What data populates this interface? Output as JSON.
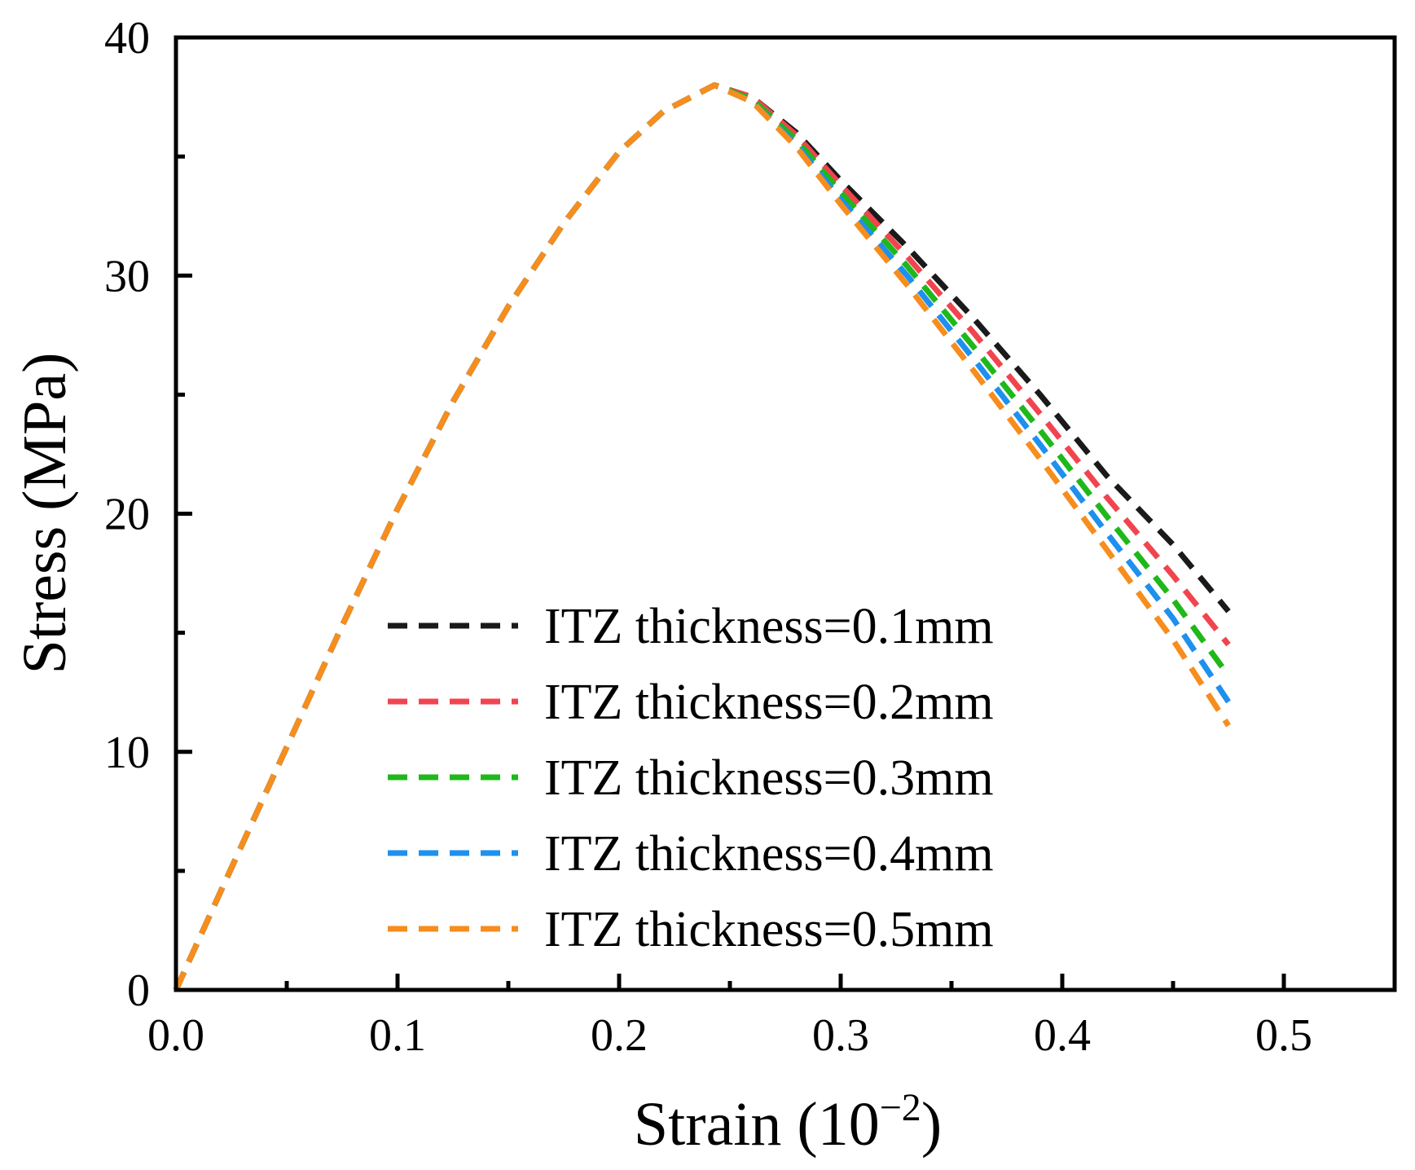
{
  "chart_data": {
    "type": "line",
    "title": "",
    "xlabel_main": "Strain (10",
    "xlabel_sup": "−2",
    "xlabel_close": ")",
    "ylabel": "Stress (MPa)",
    "xlim": [
      0,
      0.55
    ],
    "ylim": [
      0,
      40
    ],
    "x_ticks": [
      0.0,
      0.1,
      0.2,
      0.3,
      0.4,
      0.5
    ],
    "x_tick_labels": [
      "0.0",
      "0.1",
      "0.2",
      "0.3",
      "0.4",
      "0.5"
    ],
    "y_ticks": [
      0,
      10,
      20,
      30,
      40
    ],
    "y_tick_labels": [
      "0",
      "10",
      "20",
      "30",
      "40"
    ],
    "x_minor_ticks": [
      0.05,
      0.15,
      0.25,
      0.35,
      0.45
    ],
    "y_minor_ticks": [
      5,
      15,
      25,
      35
    ],
    "grid": false,
    "legend_position": "bottom-center",
    "series": [
      {
        "name": "ITZ thickness=0.1mm",
        "color": "#1a1a1a",
        "points": [
          [
            0,
            0
          ],
          [
            0.02,
            4.1
          ],
          [
            0.05,
            10.2
          ],
          [
            0.075,
            15.3
          ],
          [
            0.1,
            20.2
          ],
          [
            0.125,
            24.7
          ],
          [
            0.15,
            28.7
          ],
          [
            0.175,
            32.2
          ],
          [
            0.2,
            35.2
          ],
          [
            0.22,
            36.9
          ],
          [
            0.243,
            38.0
          ],
          [
            0.26,
            37.5
          ],
          [
            0.28,
            36.0
          ],
          [
            0.3,
            34.0
          ],
          [
            0.33,
            31.2
          ],
          [
            0.36,
            28.2
          ],
          [
            0.39,
            25.0
          ],
          [
            0.42,
            21.6
          ],
          [
            0.45,
            18.7
          ],
          [
            0.475,
            15.9
          ]
        ]
      },
      {
        "name": "ITZ thickness=0.2mm",
        "color": "#f0454f",
        "points": [
          [
            0,
            0
          ],
          [
            0.02,
            4.1
          ],
          [
            0.05,
            10.2
          ],
          [
            0.075,
            15.3
          ],
          [
            0.1,
            20.2
          ],
          [
            0.125,
            24.7
          ],
          [
            0.15,
            28.7
          ],
          [
            0.175,
            32.2
          ],
          [
            0.2,
            35.2
          ],
          [
            0.22,
            36.9
          ],
          [
            0.243,
            38.0
          ],
          [
            0.26,
            37.5
          ],
          [
            0.28,
            35.9
          ],
          [
            0.3,
            33.8
          ],
          [
            0.33,
            30.8
          ],
          [
            0.36,
            27.6
          ],
          [
            0.39,
            24.2
          ],
          [
            0.42,
            20.7
          ],
          [
            0.45,
            17.4
          ],
          [
            0.475,
            14.5
          ]
        ]
      },
      {
        "name": "ITZ thickness=0.3mm",
        "color": "#1fb81a",
        "points": [
          [
            0,
            0
          ],
          [
            0.02,
            4.1
          ],
          [
            0.05,
            10.2
          ],
          [
            0.075,
            15.3
          ],
          [
            0.1,
            20.2
          ],
          [
            0.125,
            24.7
          ],
          [
            0.15,
            28.7
          ],
          [
            0.175,
            32.2
          ],
          [
            0.2,
            35.2
          ],
          [
            0.22,
            36.9
          ],
          [
            0.243,
            38.0
          ],
          [
            0.26,
            37.4
          ],
          [
            0.28,
            35.7
          ],
          [
            0.3,
            33.5
          ],
          [
            0.33,
            30.4
          ],
          [
            0.36,
            27.0
          ],
          [
            0.39,
            23.5
          ],
          [
            0.42,
            19.9
          ],
          [
            0.45,
            16.4
          ],
          [
            0.475,
            13.2
          ]
        ]
      },
      {
        "name": "ITZ thickness=0.4mm",
        "color": "#1e90ee",
        "points": [
          [
            0,
            0
          ],
          [
            0.02,
            4.1
          ],
          [
            0.05,
            10.2
          ],
          [
            0.075,
            15.3
          ],
          [
            0.1,
            20.2
          ],
          [
            0.125,
            24.7
          ],
          [
            0.15,
            28.7
          ],
          [
            0.175,
            32.2
          ],
          [
            0.2,
            35.2
          ],
          [
            0.22,
            36.9
          ],
          [
            0.243,
            38.0
          ],
          [
            0.26,
            37.3
          ],
          [
            0.28,
            35.5
          ],
          [
            0.3,
            33.2
          ],
          [
            0.33,
            30.0
          ],
          [
            0.36,
            26.5
          ],
          [
            0.39,
            22.9
          ],
          [
            0.42,
            19.2
          ],
          [
            0.45,
            15.6
          ],
          [
            0.475,
            12.1
          ]
        ]
      },
      {
        "name": "ITZ thickness=0.5mm",
        "color": "#f78d1d",
        "points": [
          [
            0,
            0
          ],
          [
            0.02,
            4.1
          ],
          [
            0.05,
            10.2
          ],
          [
            0.075,
            15.3
          ],
          [
            0.1,
            20.2
          ],
          [
            0.125,
            24.7
          ],
          [
            0.15,
            28.7
          ],
          [
            0.175,
            32.2
          ],
          [
            0.2,
            35.2
          ],
          [
            0.22,
            36.9
          ],
          [
            0.243,
            38.0
          ],
          [
            0.26,
            37.3
          ],
          [
            0.28,
            35.4
          ],
          [
            0.3,
            33.0
          ],
          [
            0.33,
            29.6
          ],
          [
            0.36,
            26.0
          ],
          [
            0.39,
            22.3
          ],
          [
            0.42,
            18.5
          ],
          [
            0.45,
            14.7
          ],
          [
            0.475,
            11.1
          ]
        ]
      }
    ]
  }
}
